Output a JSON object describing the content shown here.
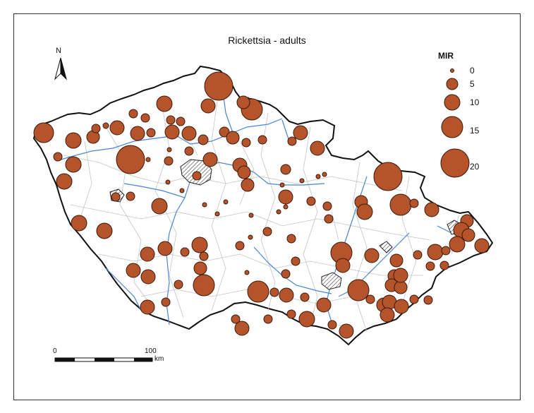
{
  "title": "Rickettsia - adults",
  "legend": {
    "title": "MIR",
    "items": [
      {
        "label": "0",
        "value": 0
      },
      {
        "label": "5",
        "value": 5
      },
      {
        "label": "10",
        "value": 10
      },
      {
        "label": "15",
        "value": 15
      },
      {
        "label": "20",
        "value": 20
      }
    ]
  },
  "north_arrow": "N",
  "scale_bar": {
    "start": "0",
    "end": "100",
    "unit": "km"
  },
  "colors": {
    "circle_fill": "#b5532a",
    "circle_stroke": "#3a1a0c",
    "country_border": "#111111",
    "district_lines": "#bbbbbb",
    "rivers": "#3f7fd0",
    "background": "#ffffff"
  },
  "icons": [
    "north-arrow-icon",
    "scale-bar-icon",
    "hatched-city-icon"
  ]
}
